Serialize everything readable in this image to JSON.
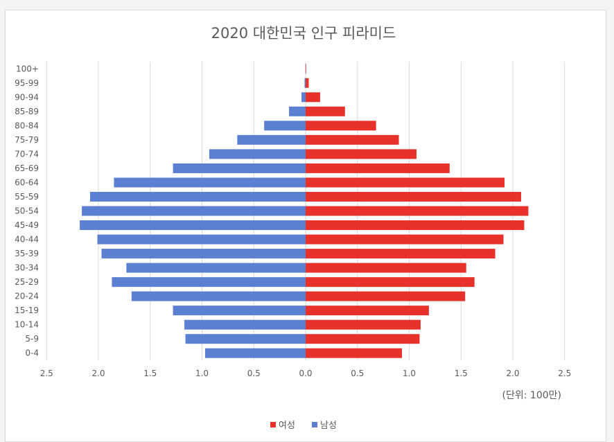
{
  "chart_data": {
    "type": "bar",
    "orientation": "horizontal",
    "title": "2020 대한민국 인구 피라미드",
    "unit_note": "(단위: 100만)",
    "categories": [
      "0-4",
      "5-9",
      "10-14",
      "15-19",
      "20-24",
      "25-29",
      "30-34",
      "35-39",
      "40-44",
      "45-49",
      "50-54",
      "55-59",
      "60-64",
      "65-69",
      "70-74",
      "75-79",
      "80-84",
      "85-89",
      "90-94",
      "95-99",
      "100+"
    ],
    "series": [
      {
        "name": "여성",
        "color": "#e8312a",
        "values": [
          0.93,
          1.1,
          1.11,
          1.19,
          1.54,
          1.63,
          1.55,
          1.83,
          1.91,
          2.11,
          2.15,
          2.08,
          1.92,
          1.39,
          1.07,
          0.9,
          0.68,
          0.38,
          0.14,
          0.03,
          0.005
        ]
      },
      {
        "name": "남성",
        "color": "#5b7fd1",
        "values": [
          0.97,
          1.16,
          1.17,
          1.28,
          1.68,
          1.87,
          1.73,
          1.97,
          2.01,
          2.18,
          2.16,
          2.08,
          1.85,
          1.28,
          0.93,
          0.66,
          0.4,
          0.16,
          0.04,
          0.01,
          0.002
        ]
      }
    ],
    "x_ticks": [
      "2.5",
      "2.0",
      "1.5",
      "1.0",
      "0.5",
      "0.0",
      "0.5",
      "1.0",
      "1.5",
      "2.0",
      "2.5"
    ],
    "xlim": [
      -2.5,
      2.5
    ],
    "grid": "vertical",
    "legend_position": "bottom"
  }
}
